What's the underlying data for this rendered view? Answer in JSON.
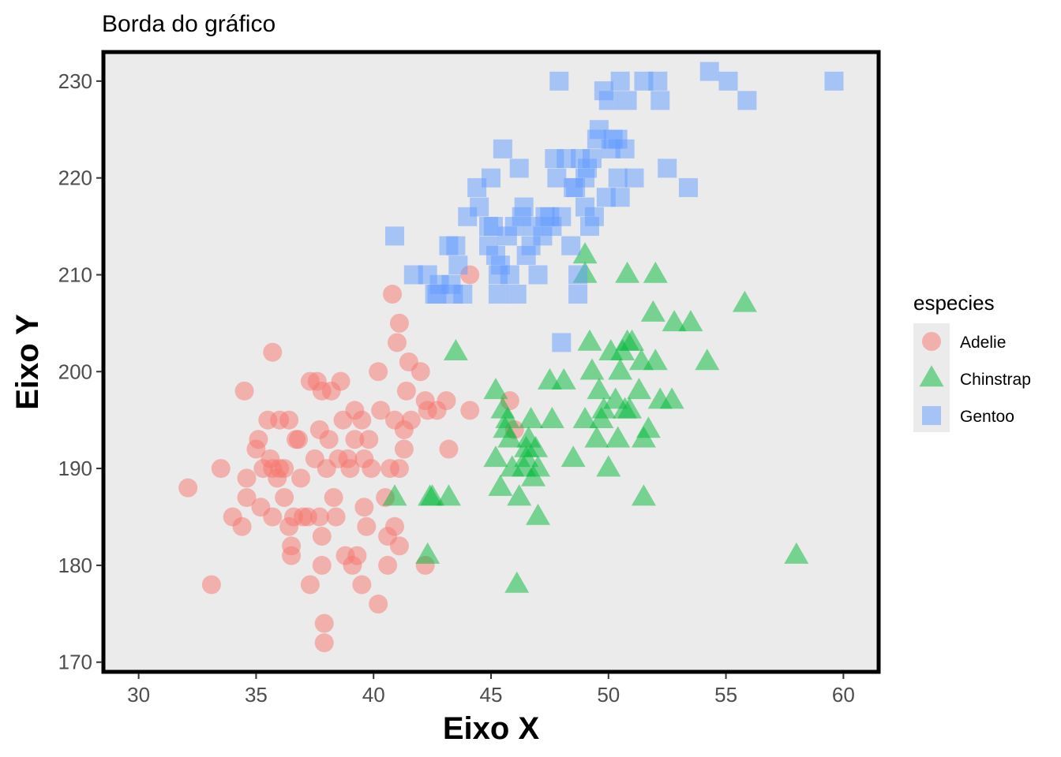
{
  "chart_data": {
    "type": "scatter",
    "title": "Borda do gráfico",
    "xlabel": "Eixo X",
    "ylabel": "Eixo Y",
    "xlim": [
      28.5,
      61.5
    ],
    "ylim": [
      169,
      233
    ],
    "x_ticks": [
      30,
      35,
      40,
      45,
      50,
      55,
      60
    ],
    "y_ticks": [
      170,
      180,
      190,
      200,
      210,
      220,
      230
    ],
    "grid": false,
    "panel_background": "#ebebeb",
    "panel_border": "#000000",
    "legend_title": "especies",
    "legend_position": "right",
    "series": [
      {
        "name": "Adelie",
        "shape": "circle",
        "color": "#f8766d",
        "points": [
          [
            32.1,
            188
          ],
          [
            33.1,
            178
          ],
          [
            33.5,
            190
          ],
          [
            34.0,
            185
          ],
          [
            34.4,
            184
          ],
          [
            34.5,
            198
          ],
          [
            34.6,
            189
          ],
          [
            34.6,
            187
          ],
          [
            35.0,
            192
          ],
          [
            35.1,
            193
          ],
          [
            35.2,
            186
          ],
          [
            35.3,
            190
          ],
          [
            35.5,
            195
          ],
          [
            35.6,
            191
          ],
          [
            35.7,
            202
          ],
          [
            35.7,
            190
          ],
          [
            35.7,
            185
          ],
          [
            35.9,
            189
          ],
          [
            36.0,
            195
          ],
          [
            36.0,
            190
          ],
          [
            36.2,
            187
          ],
          [
            36.2,
            190
          ],
          [
            36.4,
            195
          ],
          [
            36.4,
            184
          ],
          [
            36.5,
            182
          ],
          [
            36.5,
            181
          ],
          [
            36.6,
            185
          ],
          [
            36.7,
            193
          ],
          [
            36.8,
            193
          ],
          [
            36.9,
            189
          ],
          [
            37.0,
            185
          ],
          [
            37.2,
            185
          ],
          [
            37.3,
            178
          ],
          [
            37.3,
            199
          ],
          [
            37.5,
            191
          ],
          [
            37.6,
            199
          ],
          [
            37.7,
            194
          ],
          [
            37.7,
            185
          ],
          [
            37.8,
            198
          ],
          [
            37.8,
            183
          ],
          [
            37.8,
            180
          ],
          [
            37.9,
            174
          ],
          [
            37.9,
            172
          ],
          [
            38.0,
            190
          ],
          [
            38.1,
            193
          ],
          [
            38.2,
            198
          ],
          [
            38.3,
            187
          ],
          [
            38.4,
            185
          ],
          [
            38.5,
            191
          ],
          [
            38.6,
            199
          ],
          [
            38.7,
            195
          ],
          [
            38.8,
            181
          ],
          [
            38.9,
            191
          ],
          [
            39.0,
            190
          ],
          [
            39.1,
            180
          ],
          [
            39.2,
            196
          ],
          [
            39.3,
            181
          ],
          [
            39.5,
            195
          ],
          [
            39.5,
            178
          ],
          [
            39.6,
            186
          ],
          [
            39.6,
            191
          ],
          [
            39.7,
            184
          ],
          [
            39.8,
            193
          ],
          [
            39.9,
            190
          ],
          [
            40.2,
            200
          ],
          [
            40.2,
            176
          ],
          [
            40.3,
            196
          ],
          [
            40.5,
            187
          ],
          [
            40.6,
            183
          ],
          [
            40.6,
            180
          ],
          [
            40.7,
            190
          ],
          [
            40.8,
            208
          ],
          [
            40.9,
            184
          ],
          [
            40.9,
            195
          ],
          [
            41.0,
            203
          ],
          [
            41.1,
            182
          ],
          [
            41.1,
            190
          ],
          [
            41.1,
            205
          ],
          [
            41.3,
            192
          ],
          [
            41.4,
            198
          ],
          [
            41.5,
            201
          ],
          [
            41.6,
            195
          ],
          [
            42.0,
            200
          ],
          [
            42.2,
            197
          ],
          [
            42.2,
            180
          ],
          [
            42.3,
            196
          ],
          [
            42.7,
            196
          ],
          [
            43.1,
            197
          ],
          [
            43.2,
            192
          ],
          [
            44.1,
            196
          ],
          [
            44.1,
            210
          ],
          [
            45.8,
            197
          ],
          [
            46.0,
            194
          ],
          [
            41.3,
            194
          ],
          [
            39.2,
            193
          ]
        ]
      },
      {
        "name": "Chinstrap",
        "shape": "triangle",
        "color": "#00ba38",
        "points": [
          [
            40.9,
            187
          ],
          [
            42.3,
            181
          ],
          [
            42.4,
            187
          ],
          [
            42.5,
            187
          ],
          [
            43.2,
            187
          ],
          [
            43.5,
            202
          ],
          [
            45.2,
            198
          ],
          [
            45.2,
            191
          ],
          [
            45.4,
            188
          ],
          [
            45.5,
            196
          ],
          [
            45.6,
            194
          ],
          [
            45.7,
            195
          ],
          [
            45.9,
            190
          ],
          [
            46.1,
            178
          ],
          [
            46.2,
            187
          ],
          [
            46.4,
            190
          ],
          [
            46.5,
            192
          ],
          [
            46.6,
            193
          ],
          [
            46.7,
            195
          ],
          [
            46.8,
            189
          ],
          [
            46.9,
            192
          ],
          [
            47.0,
            185
          ],
          [
            47.5,
            199
          ],
          [
            47.6,
            195
          ],
          [
            48.1,
            199
          ],
          [
            48.5,
            191
          ],
          [
            49.0,
            195
          ],
          [
            49.0,
            212
          ],
          [
            49.0,
            210
          ],
          [
            49.2,
            203
          ],
          [
            49.3,
            200
          ],
          [
            49.5,
            193
          ],
          [
            49.6,
            198
          ],
          [
            49.7,
            195
          ],
          [
            49.8,
            196
          ],
          [
            50.0,
            190
          ],
          [
            50.1,
            202
          ],
          [
            50.3,
            197
          ],
          [
            50.4,
            193
          ],
          [
            50.5,
            200
          ],
          [
            50.6,
            202
          ],
          [
            50.7,
            196
          ],
          [
            50.8,
            210
          ],
          [
            50.8,
            203
          ],
          [
            50.9,
            196
          ],
          [
            51.0,
            203
          ],
          [
            51.3,
            198
          ],
          [
            51.4,
            201
          ],
          [
            51.5,
            187
          ],
          [
            51.5,
            193
          ],
          [
            51.7,
            194
          ],
          [
            51.9,
            206
          ],
          [
            52.0,
            210
          ],
          [
            52.0,
            201
          ],
          [
            52.2,
            197
          ],
          [
            52.7,
            197
          ],
          [
            52.8,
            205
          ],
          [
            53.5,
            205
          ],
          [
            54.2,
            201
          ],
          [
            55.8,
            207
          ],
          [
            58.0,
            181
          ],
          [
            46.5,
            191
          ],
          [
            47.0,
            190
          ],
          [
            45.8,
            193
          ]
        ]
      },
      {
        "name": "Gentoo",
        "shape": "square",
        "color": "#619cff",
        "points": [
          [
            40.9,
            214
          ],
          [
            41.7,
            210
          ],
          [
            42.3,
            210
          ],
          [
            42.6,
            208
          ],
          [
            42.7,
            208
          ],
          [
            42.8,
            209
          ],
          [
            43.2,
            213
          ],
          [
            43.3,
            209
          ],
          [
            43.4,
            208
          ],
          [
            43.5,
            213
          ],
          [
            43.6,
            211
          ],
          [
            43.8,
            208
          ],
          [
            44.0,
            216
          ],
          [
            44.4,
            219
          ],
          [
            44.5,
            217
          ],
          [
            44.9,
            213
          ],
          [
            45.0,
            220
          ],
          [
            45.1,
            215
          ],
          [
            45.2,
            212
          ],
          [
            45.3,
            210
          ],
          [
            45.4,
            211
          ],
          [
            45.5,
            223
          ],
          [
            45.7,
            214
          ],
          [
            45.8,
            210
          ],
          [
            46.1,
            208
          ],
          [
            46.2,
            221
          ],
          [
            46.4,
            217
          ],
          [
            46.5,
            212
          ],
          [
            46.8,
            215
          ],
          [
            47.0,
            210
          ],
          [
            47.2,
            214
          ],
          [
            47.3,
            216
          ],
          [
            47.5,
            216
          ],
          [
            47.7,
            222
          ],
          [
            48.2,
            222
          ],
          [
            48.4,
            213
          ],
          [
            48.5,
            219
          ],
          [
            48.6,
            219
          ],
          [
            48.7,
            208
          ],
          [
            48.8,
            222
          ],
          [
            49.0,
            217
          ],
          [
            49.1,
            221
          ],
          [
            49.2,
            215
          ],
          [
            49.4,
            216
          ],
          [
            49.5,
            224
          ],
          [
            49.6,
            225
          ],
          [
            49.8,
            229
          ],
          [
            50.0,
            228
          ],
          [
            50.1,
            223
          ],
          [
            50.2,
            224
          ],
          [
            50.4,
            224
          ],
          [
            50.5,
            230
          ],
          [
            50.7,
            223
          ],
          [
            50.8,
            228
          ],
          [
            51.1,
            220
          ],
          [
            51.5,
            230
          ],
          [
            52.1,
            230
          ],
          [
            52.2,
            228
          ],
          [
            52.5,
            221
          ],
          [
            53.4,
            219
          ],
          [
            54.3,
            231
          ],
          [
            55.1,
            230
          ],
          [
            55.9,
            228
          ],
          [
            59.6,
            230
          ],
          [
            47.6,
            215
          ],
          [
            46.0,
            215
          ],
          [
            48.0,
            203
          ],
          [
            49.9,
            218
          ],
          [
            50.4,
            220
          ],
          [
            45.3,
            208
          ],
          [
            44.9,
            215
          ],
          [
            46.7,
            213
          ],
          [
            47.8,
            220
          ],
          [
            48.0,
            216
          ],
          [
            46.3,
            216
          ],
          [
            48.7,
            210
          ],
          [
            49.3,
            222
          ],
          [
            47.9,
            230
          ],
          [
            49.0,
            220
          ],
          [
            50.5,
            218
          ]
        ]
      }
    ]
  }
}
